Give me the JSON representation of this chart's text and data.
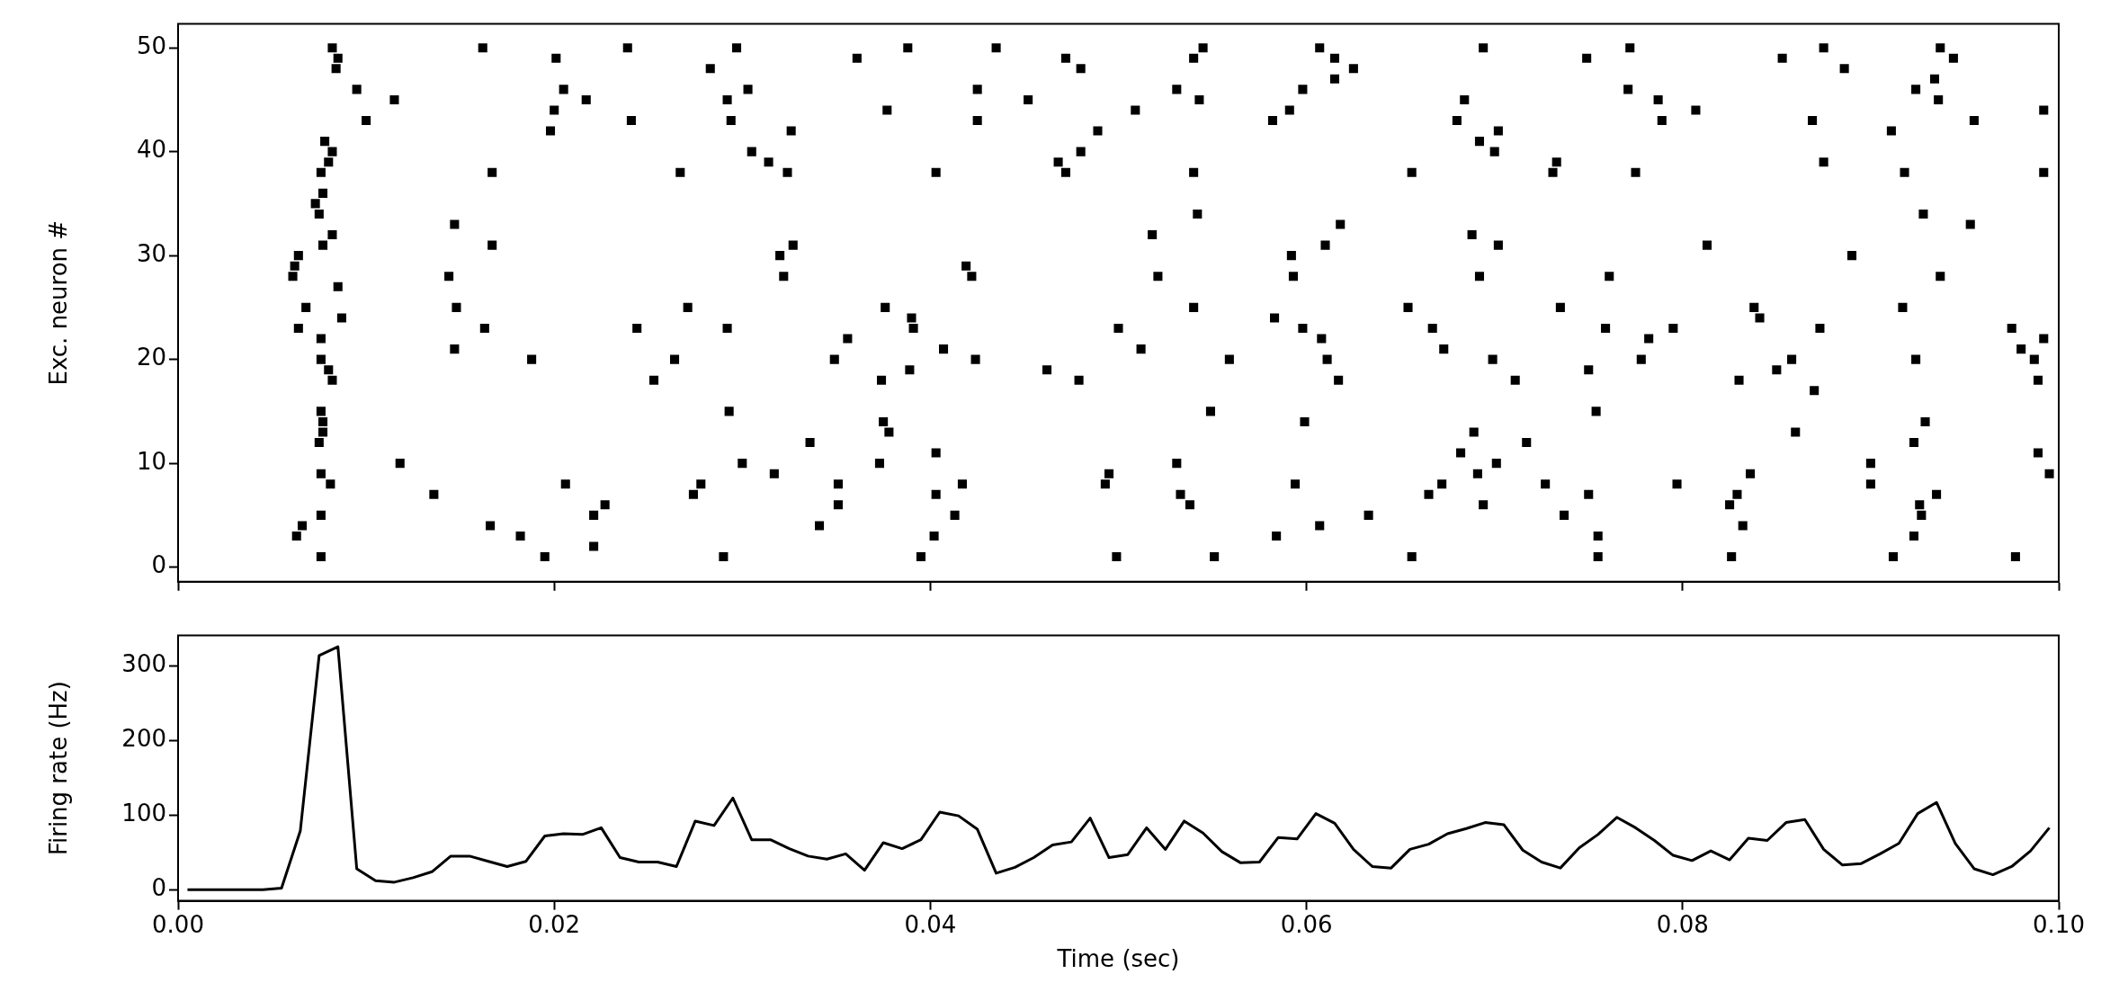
{
  "chart_data": [
    {
      "type": "scatter",
      "ylabel": "Exc. neuron #",
      "color": "#000000",
      "xlim": [
        0,
        0.1
      ],
      "xticks": [
        {
          "value": 0,
          "label": null
        },
        {
          "value": 0.02,
          "label": null
        },
        {
          "value": 0.04,
          "label": null
        },
        {
          "value": 0.06,
          "label": null
        },
        {
          "value": 0.08,
          "label": null
        },
        {
          "value": 0.1,
          "label": null
        }
      ],
      "ylim": [
        -1.4,
        52.3
      ],
      "yticks": [
        0,
        10,
        20,
        30,
        40,
        50
      ],
      "tick_labels": "y",
      "grid": false,
      "legend": false,
      "marker": "square",
      "x": [
        0.0082,
        0.0085,
        0.0084,
        0.0162,
        0.0201,
        0.0239,
        0.0095,
        0.0115,
        0.0205,
        0.0217,
        0.01,
        0.02,
        0.0198,
        0.0241,
        0.0078,
        0.0082,
        0.008,
        0.0167,
        0.0076,
        0.0077,
        0.0073,
        0.0075,
        0.0147,
        0.0082,
        0.0077,
        0.0167,
        0.0064,
        0.0062,
        0.0061,
        0.0144,
        0.0085,
        0.0068,
        0.0148,
        0.0087,
        0.0064,
        0.0163,
        0.0244,
        0.0076,
        0.0076,
        0.0147,
        0.0188,
        0.008,
        0.0082,
        0.0253,
        0.0076,
        0.0077,
        0.0077,
        0.0075,
        0.0118,
        0.0076,
        0.0081,
        0.0136,
        0.0206,
        0.0227,
        0.0221,
        0.0076,
        0.0066,
        0.0063,
        0.0166,
        0.0182,
        0.0221,
        0.0076,
        0.0195,
        0.0297,
        0.0283,
        0.0361,
        0.0388,
        0.0435,
        0.0472,
        0.048,
        0.0303,
        0.0292,
        0.0294,
        0.0377,
        0.0425,
        0.0425,
        0.0452,
        0.0509,
        0.0326,
        0.0305,
        0.0314,
        0.0324,
        0.0267,
        0.0403,
        0.0489,
        0.048,
        0.0468,
        0.0472,
        0.0327,
        0.032,
        0.0322,
        0.0419,
        0.0422,
        0.0271,
        0.0292,
        0.0376,
        0.039,
        0.0391,
        0.0356,
        0.0349,
        0.0264,
        0.0407,
        0.0424,
        0.0389,
        0.0374,
        0.0462,
        0.0479,
        0.05,
        0.0512,
        0.0293,
        0.0375,
        0.0378,
        0.0336,
        0.03,
        0.0373,
        0.0403,
        0.0278,
        0.0274,
        0.0317,
        0.0351,
        0.0351,
        0.0403,
        0.0417,
        0.0413,
        0.0495,
        0.0493,
        0.0341,
        0.0402,
        0.029,
        0.0395,
        0.0499,
        0.0545,
        0.054,
        0.0607,
        0.0615,
        0.0615,
        0.0625,
        0.0694,
        0.0749,
        0.0531,
        0.0543,
        0.0598,
        0.0591,
        0.0582,
        0.0684,
        0.068,
        0.0702,
        0.0692,
        0.07,
        0.0733,
        0.0731,
        0.054,
        0.0656,
        0.0542,
        0.0518,
        0.0618,
        0.061,
        0.0688,
        0.0702,
        0.0592,
        0.0593,
        0.0521,
        0.0692,
        0.0761,
        0.054,
        0.0583,
        0.0654,
        0.0735,
        0.0598,
        0.0608,
        0.0611,
        0.0617,
        0.0559,
        0.0667,
        0.0673,
        0.0699,
        0.0711,
        0.0759,
        0.075,
        0.0549,
        0.0599,
        0.0754,
        0.0689,
        0.0717,
        0.0682,
        0.0531,
        0.0691,
        0.0701,
        0.0533,
        0.0538,
        0.0594,
        0.0672,
        0.0665,
        0.0694,
        0.0727,
        0.075,
        0.0737,
        0.0633,
        0.0607,
        0.0584,
        0.0551,
        0.0656,
        0.0755,
        0.0755,
        0.0772,
        0.0853,
        0.0875,
        0.0886,
        0.0937,
        0.0944,
        0.0771,
        0.0787,
        0.0789,
        0.0807,
        0.0869,
        0.0911,
        0.0924,
        0.0934,
        0.0936,
        0.0955,
        0.0992,
        0.0775,
        0.0875,
        0.0918,
        0.0992,
        0.0928,
        0.0953,
        0.0813,
        0.089,
        0.0937,
        0.0838,
        0.0841,
        0.0917,
        0.0795,
        0.0782,
        0.0778,
        0.0873,
        0.0858,
        0.085,
        0.083,
        0.087,
        0.0924,
        0.0975,
        0.098,
        0.0987,
        0.0989,
        0.0992,
        0.086,
        0.0929,
        0.0923,
        0.0989,
        0.0995,
        0.0797,
        0.0836,
        0.0829,
        0.0825,
        0.0832,
        0.09,
        0.09,
        0.0935,
        0.0926,
        0.0927,
        0.0923,
        0.0826,
        0.0912,
        0.0977
      ],
      "values": [
        50,
        49,
        48,
        50,
        49,
        50,
        46,
        45,
        46,
        45,
        43,
        44,
        42,
        43,
        41,
        40,
        39,
        38,
        38,
        36,
        35,
        34,
        33,
        32,
        31,
        31,
        30,
        29,
        28,
        28,
        27,
        25,
        25,
        24,
        23,
        23,
        23,
        22,
        20,
        21,
        20,
        19,
        18,
        18,
        15,
        14,
        13,
        12,
        10,
        9,
        8,
        7,
        8,
        6,
        5,
        5,
        4,
        3,
        4,
        3,
        2,
        1,
        1,
        50,
        48,
        49,
        50,
        50,
        49,
        48,
        46,
        45,
        43,
        44,
        46,
        43,
        45,
        44,
        42,
        40,
        39,
        38,
        38,
        38,
        42,
        40,
        39,
        38,
        31,
        30,
        28,
        29,
        28,
        25,
        23,
        25,
        24,
        23,
        22,
        20,
        20,
        21,
        20,
        19,
        18,
        19,
        18,
        23,
        21,
        15,
        14,
        13,
        12,
        10,
        10,
        11,
        8,
        7,
        9,
        8,
        6,
        7,
        8,
        5,
        9,
        8,
        4,
        3,
        1,
        1,
        1,
        50,
        49,
        50,
        49,
        47,
        48,
        50,
        49,
        46,
        45,
        46,
        44,
        43,
        45,
        43,
        42,
        41,
        40,
        39,
        38,
        38,
        38,
        34,
        32,
        33,
        31,
        32,
        31,
        30,
        28,
        28,
        28,
        28,
        25,
        24,
        25,
        25,
        23,
        22,
        20,
        18,
        20,
        23,
        21,
        20,
        18,
        23,
        19,
        15,
        14,
        15,
        13,
        12,
        11,
        10,
        9,
        10,
        7,
        6,
        8,
        8,
        7,
        6,
        8,
        7,
        5,
        5,
        4,
        3,
        1,
        1,
        3,
        1,
        50,
        49,
        50,
        48,
        50,
        49,
        46,
        45,
        43,
        44,
        43,
        42,
        46,
        47,
        45,
        43,
        44,
        38,
        39,
        38,
        38,
        34,
        33,
        31,
        30,
        28,
        25,
        24,
        25,
        23,
        22,
        20,
        23,
        20,
        19,
        18,
        17,
        20,
        23,
        21,
        20,
        18,
        22,
        13,
        14,
        12,
        11,
        9,
        8,
        9,
        7,
        6,
        4,
        10,
        8,
        7,
        6,
        5,
        3,
        1,
        1,
        1
      ]
    },
    {
      "type": "line",
      "xlabel": "Time (sec)",
      "ylabel": "Firing rate (Hz)",
      "color": "#000000",
      "marker": "none",
      "line_style": "solid",
      "xlim": [
        0,
        0.1
      ],
      "xticks": [
        {
          "value": 0,
          "label": "0.00"
        },
        {
          "value": 0.02,
          "label": "0.02"
        },
        {
          "value": 0.04,
          "label": "0.04"
        },
        {
          "value": 0.06,
          "label": "0.06"
        },
        {
          "value": 0.08,
          "label": "0.08"
        },
        {
          "value": 0.1,
          "label": "0.10"
        }
      ],
      "ylim": [
        -15,
        341
      ],
      "yticks": [
        0,
        100,
        200,
        300
      ],
      "grid": false,
      "legend": false,
      "x": [
        0.0005,
        0.0015,
        0.0025,
        0.0035,
        0.0045,
        0.0055,
        0.0065,
        0.0075,
        0.0085,
        0.0095,
        0.0105,
        0.0115,
        0.0125,
        0.0135,
        0.0145,
        0.0155,
        0.0165,
        0.0175,
        0.0185,
        0.0195,
        0.0205,
        0.0215,
        0.0225,
        0.0235,
        0.0245,
        0.0255,
        0.0265,
        0.0275,
        0.0285,
        0.0295,
        0.0305,
        0.0315,
        0.0325,
        0.0335,
        0.0345,
        0.0355,
        0.0365,
        0.0375,
        0.0385,
        0.0395,
        0.0405,
        0.0415,
        0.0425,
        0.0435,
        0.0445,
        0.0455,
        0.0465,
        0.0475,
        0.0485,
        0.0495,
        0.0505,
        0.0515,
        0.0525,
        0.0535,
        0.0545,
        0.0555,
        0.0565,
        0.0575,
        0.0585,
        0.0595,
        0.0605,
        0.0615,
        0.0625,
        0.0635,
        0.0645,
        0.0655,
        0.0665,
        0.0675,
        0.0685,
        0.0695,
        0.0705,
        0.0715,
        0.0725,
        0.0735,
        0.0745,
        0.0755,
        0.0765,
        0.0775,
        0.0785,
        0.0795,
        0.0805,
        0.0815,
        0.0825,
        0.0835,
        0.0845,
        0.0855,
        0.0865,
        0.0875,
        0.0885,
        0.0895,
        0.0905,
        0.0915,
        0.0925,
        0.0935,
        0.0945,
        0.0955,
        0.0965,
        0.0975,
        0.0985,
        0.0995
      ],
      "values": [
        0,
        0,
        0,
        0,
        0,
        2,
        79,
        314,
        326,
        28,
        12,
        10,
        16,
        24,
        45,
        45,
        38,
        31,
        38,
        72,
        75,
        74,
        83,
        43,
        37,
        37,
        31,
        92,
        86,
        123,
        67,
        67,
        55,
        45,
        41,
        48,
        26,
        63,
        55,
        67,
        104,
        99,
        81,
        22,
        30,
        43,
        60,
        64,
        96,
        43,
        47,
        83,
        54,
        92,
        76,
        51,
        36,
        37,
        70,
        68,
        102,
        89,
        54,
        31,
        29,
        54,
        61,
        75,
        82,
        90,
        87,
        53,
        37,
        29,
        56,
        74,
        97,
        83,
        66,
        46,
        39,
        52,
        40,
        69,
        66,
        90,
        94,
        54,
        33,
        35,
        48,
        62,
        102,
        117,
        62,
        28,
        20,
        31,
        52,
        83
      ]
    }
  ]
}
